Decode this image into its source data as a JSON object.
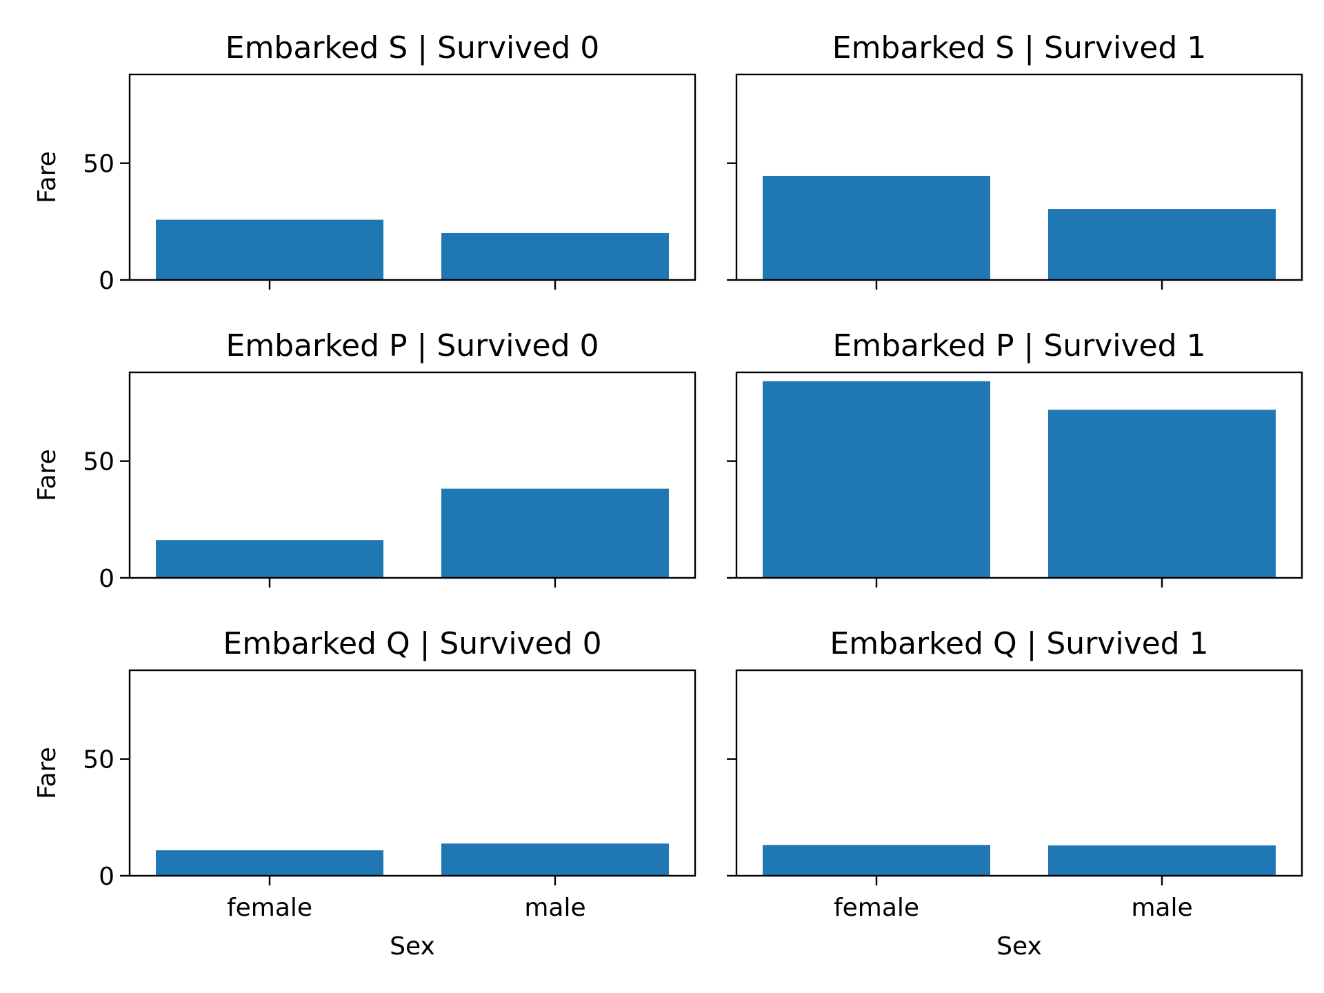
{
  "chart_data": {
    "type": "bar",
    "layout": "facet-grid",
    "rows": 3,
    "cols": 2,
    "categories": [
      "female",
      "male"
    ],
    "xlabel": "Sex",
    "ylabel": "Fare",
    "ylim": [
      0,
      88
    ],
    "yticks": [
      0,
      50
    ],
    "bar_color": "#1f77b4",
    "panels": [
      {
        "title": "Embarked S | Survived 0",
        "values": [
          25.8,
          20.1
        ]
      },
      {
        "title": "Embarked S | Survived 1",
        "values": [
          44.6,
          30.4
        ]
      },
      {
        "title": "Embarked P | Survived 0",
        "values": [
          16.2,
          38.2
        ]
      },
      {
        "title": "Embarked P | Survived 1",
        "values": [
          84.2,
          72.0
        ]
      },
      {
        "title": "Embarked Q | Survived 0",
        "values": [
          10.9,
          13.8
        ]
      },
      {
        "title": "Embarked Q | Survived 1",
        "values": [
          13.2,
          13.0
        ]
      }
    ]
  }
}
